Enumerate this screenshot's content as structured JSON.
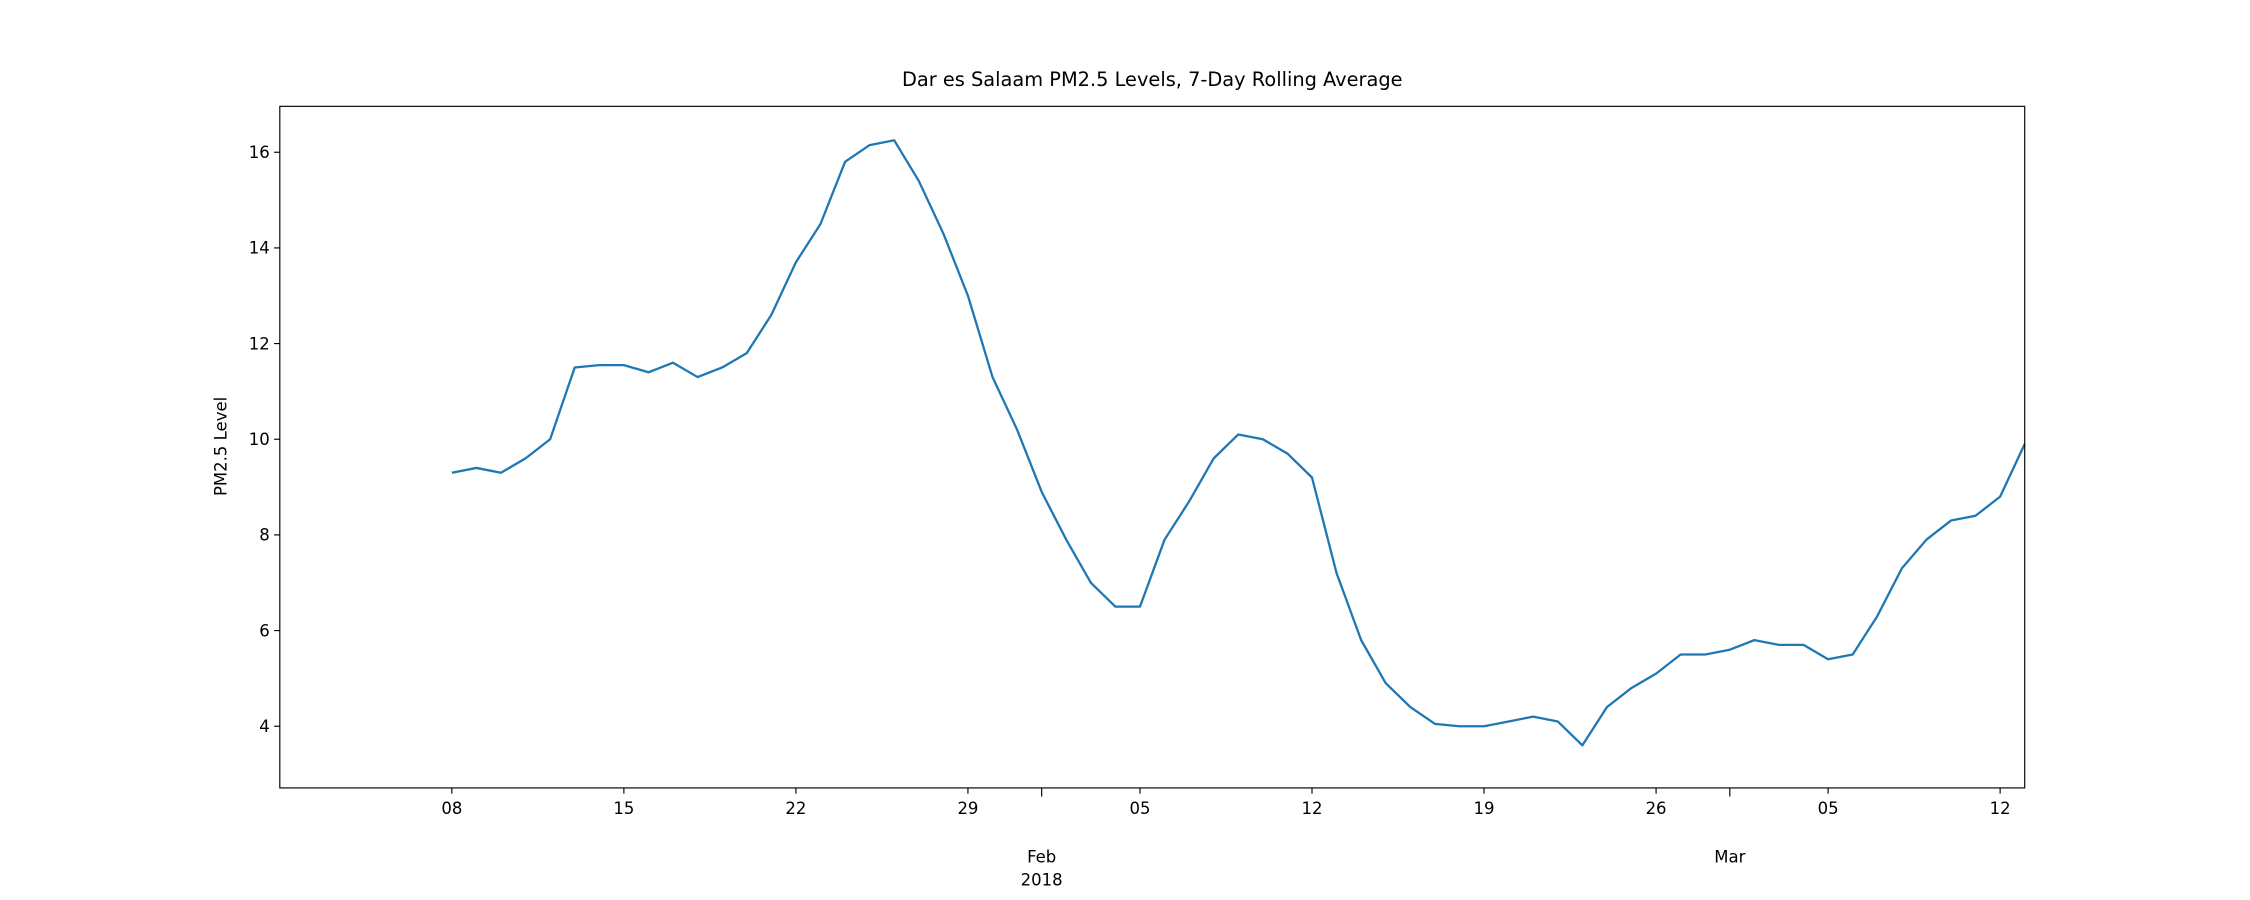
{
  "chart_data": {
    "type": "line",
    "title": "Dar es Salaam PM2.5 Levels, 7-Day Rolling Average",
    "y_label": "PM2.5 Level",
    "color": "#1f77b4",
    "x": [
      "2018-01-08",
      "2018-01-09",
      "2018-01-10",
      "2018-01-11",
      "2018-01-12",
      "2018-01-13",
      "2018-01-14",
      "2018-01-15",
      "2018-01-16",
      "2018-01-17",
      "2018-01-18",
      "2018-01-19",
      "2018-01-20",
      "2018-01-21",
      "2018-01-22",
      "2018-01-23",
      "2018-01-24",
      "2018-01-25",
      "2018-01-26",
      "2018-01-27",
      "2018-01-28",
      "2018-01-29",
      "2018-01-30",
      "2018-01-31",
      "2018-02-01",
      "2018-02-02",
      "2018-02-03",
      "2018-02-04",
      "2018-02-05",
      "2018-02-06",
      "2018-02-07",
      "2018-02-08",
      "2018-02-09",
      "2018-02-10",
      "2018-02-11",
      "2018-02-12",
      "2018-02-13",
      "2018-02-14",
      "2018-02-15",
      "2018-02-16",
      "2018-02-17",
      "2018-02-18",
      "2018-02-19",
      "2018-02-20",
      "2018-02-21",
      "2018-02-22",
      "2018-02-23",
      "2018-02-24",
      "2018-02-25",
      "2018-02-26",
      "2018-02-27",
      "2018-02-28",
      "2018-03-01",
      "2018-03-02",
      "2018-03-03",
      "2018-03-04",
      "2018-03-05",
      "2018-03-06",
      "2018-03-07",
      "2018-03-08",
      "2018-03-09",
      "2018-03-10",
      "2018-03-11",
      "2018-03-12",
      "2018-03-13"
    ],
    "values": [
      9.3,
      9.4,
      9.3,
      9.6,
      10.0,
      11.5,
      11.55,
      11.55,
      11.4,
      11.6,
      11.3,
      11.5,
      11.8,
      12.6,
      13.7,
      14.5,
      15.8,
      16.15,
      16.25,
      15.4,
      14.3,
      13.0,
      11.3,
      10.2,
      8.9,
      7.9,
      7.0,
      6.5,
      6.5,
      7.9,
      8.7,
      9.6,
      10.1,
      10.0,
      9.7,
      9.2,
      7.2,
      5.8,
      4.9,
      4.4,
      4.05,
      4.0,
      4.0,
      4.1,
      4.2,
      4.1,
      3.6,
      4.4,
      4.8,
      5.1,
      5.5,
      5.5,
      5.6,
      5.8,
      5.7,
      5.7,
      5.4,
      5.5,
      6.3,
      7.3,
      7.9,
      8.3,
      8.4,
      8.8,
      9.9
    ],
    "xlim": [
      "2018-01-01",
      "2018-03-13"
    ],
    "ylim": [
      2.71,
      16.96
    ],
    "yticks": [
      4,
      6,
      8,
      10,
      12,
      14,
      16
    ],
    "xticks": [
      {
        "value": "2018-01-08",
        "label": "08"
      },
      {
        "value": "2018-01-15",
        "label": "15"
      },
      {
        "value": "2018-01-22",
        "label": "22"
      },
      {
        "value": "2018-01-29",
        "label": "29"
      },
      {
        "value": "2018-02-05",
        "label": "05"
      },
      {
        "value": "2018-02-12",
        "label": "12"
      },
      {
        "value": "2018-02-19",
        "label": "19"
      },
      {
        "value": "2018-02-26",
        "label": "26"
      },
      {
        "value": "2018-03-05",
        "label": "05"
      },
      {
        "value": "2018-03-12",
        "label": "12"
      }
    ],
    "xticks_month": [
      {
        "value": "2018-02-01",
        "label": "Feb"
      },
      {
        "value": "2018-03-01",
        "label": "Mar"
      }
    ],
    "xticks_year": [
      {
        "value": "2018-02-01",
        "label": "2018"
      }
    ]
  }
}
